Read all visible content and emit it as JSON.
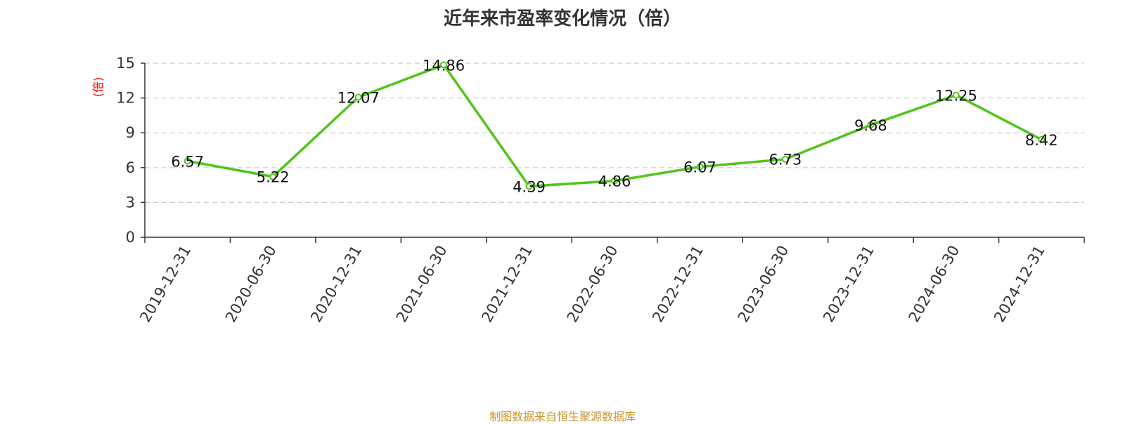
{
  "chart_data": {
    "type": "line",
    "title": "近年来市盈率变化情况（倍）",
    "ylabel": "(倍)",
    "xlabel": "",
    "categories": [
      "2019-12-31",
      "2020-06-30",
      "2020-12-31",
      "2021-06-30",
      "2021-12-31",
      "2022-06-30",
      "2022-12-31",
      "2023-06-30",
      "2023-12-31",
      "2024-06-30",
      "2024-12-31"
    ],
    "values": [
      6.57,
      5.22,
      12.07,
      14.86,
      4.39,
      4.86,
      6.07,
      6.73,
      9.68,
      12.25,
      8.42
    ],
    "data_labels": [
      "6.57",
      "5.22",
      "12.07",
      "14.86",
      "4.39",
      "4.86",
      "6.07",
      "6.73",
      "9.68",
      "12.25",
      "8.42"
    ],
    "y_ticks": [
      "0",
      "3",
      "6",
      "9",
      "12",
      "15"
    ],
    "ylim": [
      0,
      15
    ],
    "grid": true,
    "legend": "none",
    "line_color": "#52c41a",
    "ylabel_color": "#ff0000"
  },
  "source": {
    "text": "制图数据来自恒生聚源数据库",
    "color": "#c8962a"
  }
}
